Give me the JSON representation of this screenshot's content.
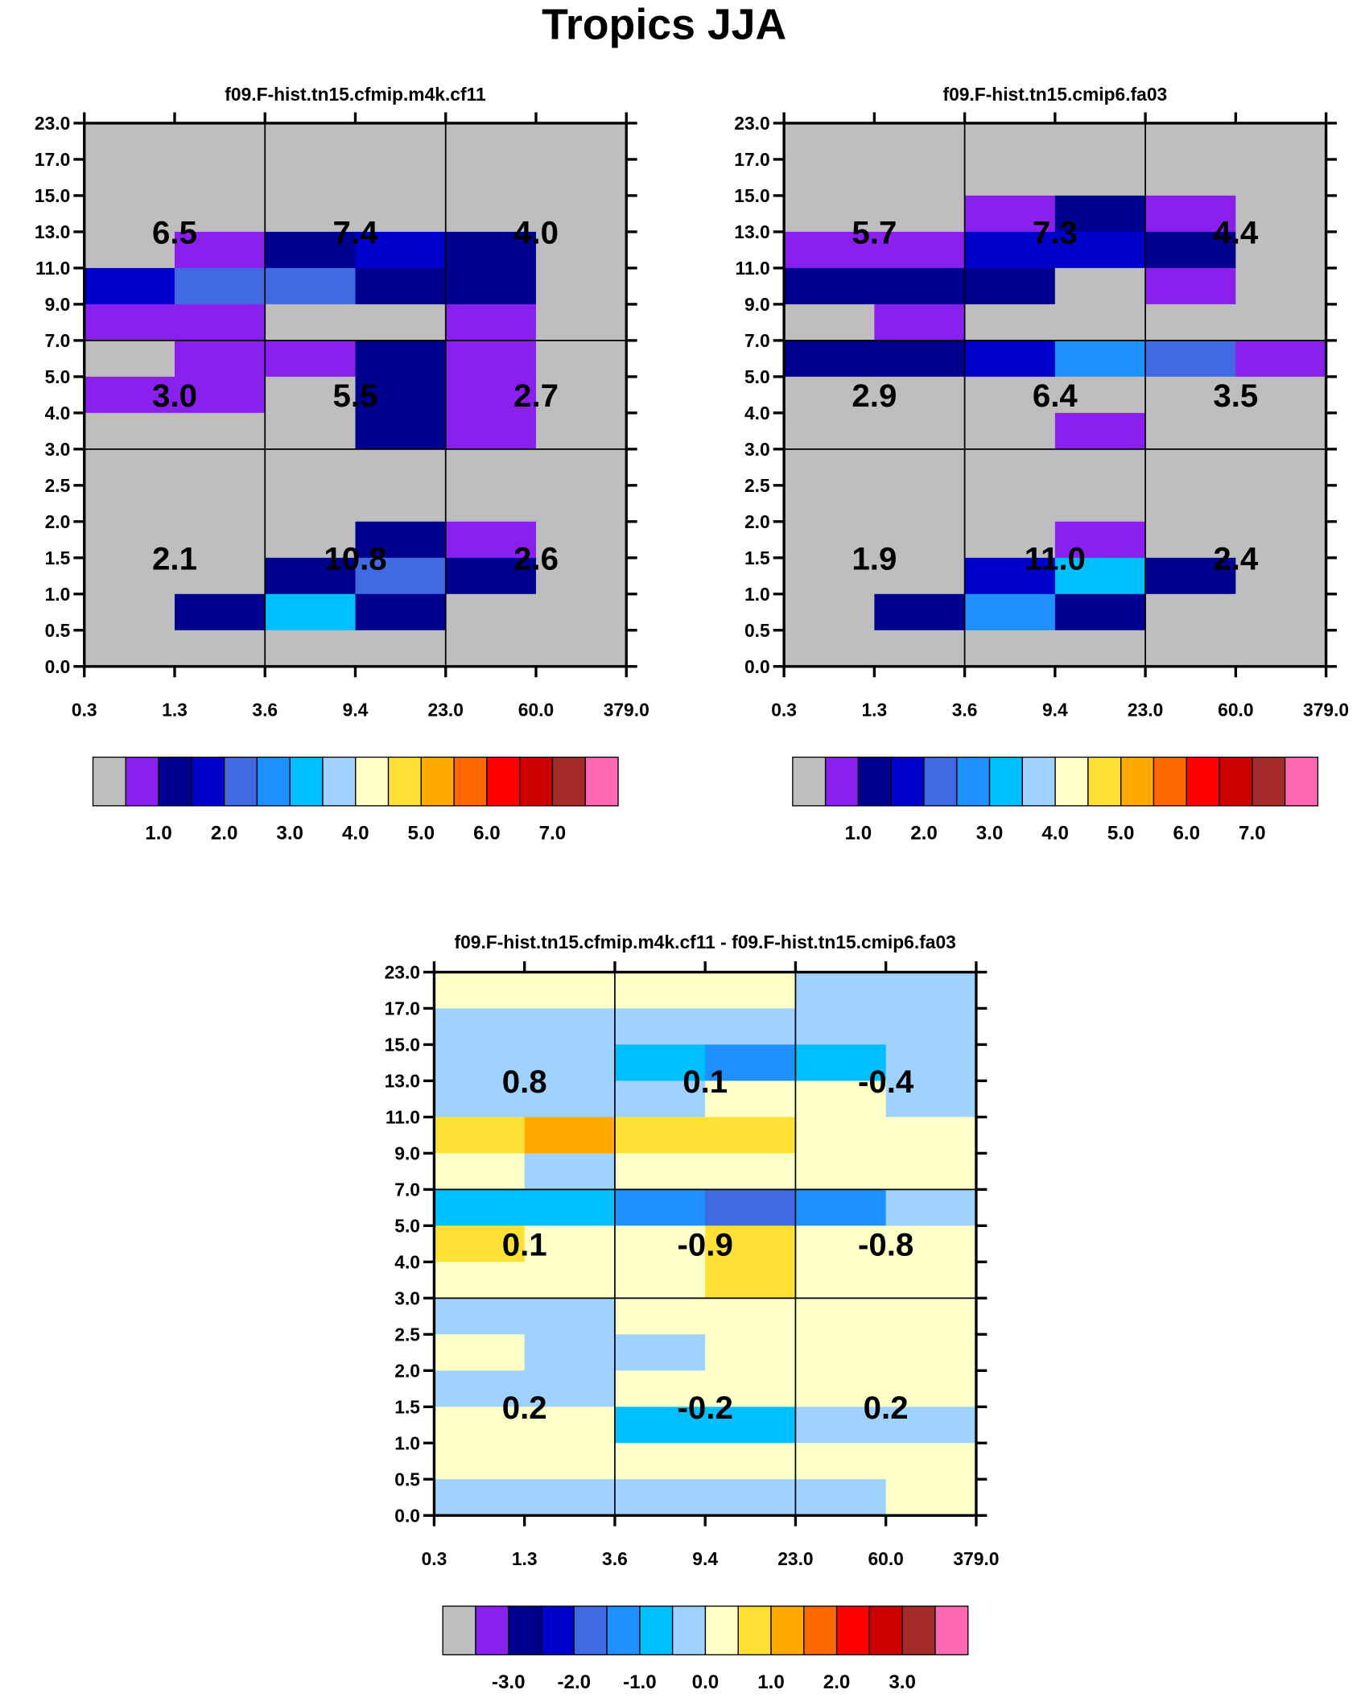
{
  "title": "Tropics JJA",
  "palette": [
    "#bebebe",
    "#8a20ee",
    "#00008f",
    "#0000cd",
    "#4169e1",
    "#1e90ff",
    "#00bfff",
    "#a0d2ff",
    "#ffffc8",
    "#ffe135",
    "#ffaa00",
    "#ff6a00",
    "#ff0000",
    "#cd0000",
    "#a52a2a",
    "#ff69b4"
  ],
  "chart_data": [
    {
      "type": "heatmap",
      "title": "f09.F-hist.tn15.cfmip.m4k.cf11",
      "x_ticks": [
        "0.3",
        "1.3",
        "3.6",
        "9.4",
        "23.0",
        "60.0",
        "379.0"
      ],
      "y_ticks": [
        "23.0",
        "17.0",
        "15.0",
        "13.0",
        "11.0",
        "9.0",
        "7.0",
        "5.0",
        "4.0",
        "3.0",
        "2.5",
        "2.0",
        "1.5",
        "1.0",
        "0.5",
        "0.0"
      ],
      "cells_color_index_top_to_bottom": [
        [
          0,
          0,
          0,
          0,
          0,
          0
        ],
        [
          0,
          0,
          0,
          0,
          0,
          0
        ],
        [
          0,
          0,
          0,
          0,
          0,
          0
        ],
        [
          0,
          1,
          2,
          3,
          2,
          0
        ],
        [
          3,
          4,
          4,
          2,
          2,
          0
        ],
        [
          1,
          1,
          0,
          0,
          1,
          0
        ],
        [
          0,
          1,
          1,
          2,
          1,
          0
        ],
        [
          1,
          1,
          0,
          2,
          1,
          0
        ],
        [
          0,
          0,
          0,
          2,
          1,
          0
        ],
        [
          0,
          0,
          0,
          0,
          0,
          0
        ],
        [
          0,
          0,
          0,
          0,
          0,
          0
        ],
        [
          0,
          0,
          0,
          2,
          1,
          0
        ],
        [
          0,
          0,
          2,
          4,
          2,
          0
        ],
        [
          0,
          2,
          6,
          2,
          0,
          0
        ],
        [
          0,
          0,
          0,
          0,
          0,
          0
        ]
      ],
      "group_values": [
        [
          "6.5",
          "7.4",
          "4.0"
        ],
        [
          "3.0",
          "5.5",
          "2.7"
        ],
        [
          "2.1",
          "10.8",
          "2.6"
        ]
      ],
      "colorbar_labels": [
        "1.0",
        "2.0",
        "3.0",
        "4.0",
        "5.0",
        "6.0",
        "7.0"
      ]
    },
    {
      "type": "heatmap",
      "title": "f09.F-hist.tn15.cmip6.fa03",
      "x_ticks": [
        "0.3",
        "1.3",
        "3.6",
        "9.4",
        "23.0",
        "60.0",
        "379.0"
      ],
      "y_ticks": [
        "23.0",
        "17.0",
        "15.0",
        "13.0",
        "11.0",
        "9.0",
        "7.0",
        "5.0",
        "4.0",
        "3.0",
        "2.5",
        "2.0",
        "1.5",
        "1.0",
        "0.5",
        "0.0"
      ],
      "cells_color_index_top_to_bottom": [
        [
          0,
          0,
          0,
          0,
          0,
          0
        ],
        [
          0,
          0,
          0,
          0,
          0,
          0
        ],
        [
          0,
          0,
          1,
          2,
          1,
          0
        ],
        [
          1,
          1,
          3,
          3,
          2,
          0
        ],
        [
          2,
          2,
          2,
          0,
          1,
          0
        ],
        [
          0,
          1,
          0,
          0,
          0,
          0
        ],
        [
          2,
          2,
          3,
          5,
          4,
          1
        ],
        [
          0,
          0,
          0,
          0,
          0,
          0
        ],
        [
          0,
          0,
          0,
          1,
          0,
          0
        ],
        [
          0,
          0,
          0,
          0,
          0,
          0
        ],
        [
          0,
          0,
          0,
          0,
          0,
          0
        ],
        [
          0,
          0,
          0,
          1,
          0,
          0
        ],
        [
          0,
          0,
          3,
          6,
          2,
          0
        ],
        [
          0,
          2,
          5,
          2,
          0,
          0
        ],
        [
          0,
          0,
          0,
          0,
          0,
          0
        ]
      ],
      "group_values": [
        [
          "5.7",
          "7.3",
          "4.4"
        ],
        [
          "2.9",
          "6.4",
          "3.5"
        ],
        [
          "1.9",
          "11.0",
          "2.4"
        ]
      ],
      "colorbar_labels": [
        "1.0",
        "2.0",
        "3.0",
        "4.0",
        "5.0",
        "6.0",
        "7.0"
      ]
    },
    {
      "type": "heatmap",
      "title": "f09.F-hist.tn15.cfmip.m4k.cf11 - f09.F-hist.tn15.cmip6.fa03",
      "x_ticks": [
        "0.3",
        "1.3",
        "3.6",
        "9.4",
        "23.0",
        "60.0",
        "379.0"
      ],
      "y_ticks": [
        "23.0",
        "17.0",
        "15.0",
        "13.0",
        "11.0",
        "9.0",
        "7.0",
        "5.0",
        "4.0",
        "3.0",
        "2.5",
        "2.0",
        "1.5",
        "1.0",
        "0.5",
        "0.0"
      ],
      "cells_color_index_top_to_bottom": [
        [
          8,
          8,
          8,
          8,
          7,
          7
        ],
        [
          7,
          7,
          7,
          7,
          7,
          7
        ],
        [
          7,
          7,
          6,
          5,
          6,
          7
        ],
        [
          7,
          7,
          7,
          8,
          8,
          7
        ],
        [
          9,
          10,
          9,
          9,
          8,
          8
        ],
        [
          8,
          7,
          8,
          8,
          8,
          8
        ],
        [
          6,
          6,
          5,
          4,
          5,
          7
        ],
        [
          9,
          8,
          8,
          9,
          8,
          8
        ],
        [
          8,
          8,
          8,
          9,
          8,
          8
        ],
        [
          7,
          7,
          8,
          8,
          8,
          8
        ],
        [
          8,
          7,
          7,
          8,
          8,
          8
        ],
        [
          7,
          7,
          8,
          8,
          8,
          8
        ],
        [
          8,
          8,
          6,
          6,
          7,
          7
        ],
        [
          8,
          8,
          8,
          8,
          8,
          8
        ],
        [
          7,
          7,
          7,
          7,
          7,
          8
        ]
      ],
      "group_values": [
        [
          "0.8",
          "0.1",
          "-0.4"
        ],
        [
          "0.1",
          "-0.9",
          "-0.8"
        ],
        [
          "0.2",
          "-0.2",
          "0.2"
        ]
      ],
      "colorbar_labels": [
        "-3.0",
        "-2.0",
        "-1.0",
        "0.0",
        "1.0",
        "2.0",
        "3.0"
      ]
    }
  ]
}
